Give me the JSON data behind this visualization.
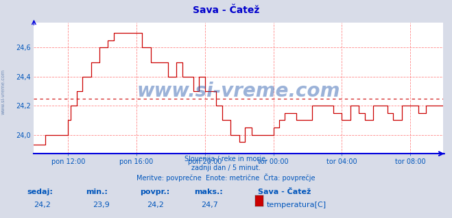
{
  "title": "Sava - Čatež",
  "title_color": "#0000cc",
  "title_fontsize": 10,
  "background_color": "#d8dce8",
  "plot_background": "#ffffff",
  "grid_color": "#ff8888",
  "grid_style": "--",
  "line_color": "#cc0000",
  "avg_line_color": "#cc0000",
  "avg_line_style": "dotted",
  "avg_value": 24.25,
  "ylim": [
    23.87,
    24.77
  ],
  "yticks": [
    24.0,
    24.2,
    24.4,
    24.6
  ],
  "xtick_labels": [
    "pon 12:00",
    "pon 16:00",
    "pon 20:00",
    "tor 00:00",
    "tor 04:00",
    "tor 08:00"
  ],
  "text_line1": "Slovenija / reke in morje.",
  "text_line2": "zadnji dan / 5 minut.",
  "text_line3": "Meritve: povprečne  Enote: metrične  Črta: povprečje",
  "text_color": "#0055bb",
  "watermark": "www.si-vreme.com",
  "watermark_color": "#2255aa",
  "watermark_alpha": 0.45,
  "label_sedaj": "sedaj:",
  "label_min": "min.:",
  "label_povpr": "povpr.:",
  "label_maks": "maks.:",
  "val_sedaj": "24,2",
  "val_min": "23,9",
  "val_povpr": "24,2",
  "val_maks": "24,7",
  "legend_station": "Sava - Čatež",
  "legend_label": "temperatura[C]",
  "legend_color": "#cc0000",
  "axis_bottom_color": "#0000dd",
  "axis_left_color": "#0000dd",
  "tick_color": "#0055bb",
  "side_label": "www.si-vreme.com",
  "side_label_color": "#5577aa"
}
